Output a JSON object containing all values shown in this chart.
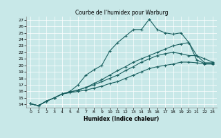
{
  "title": "Courbe de l'humidex pour Warburg",
  "xlabel": "Humidex (Indice chaleur)",
  "bg_color": "#c8e8e8",
  "line_color": "#1a6060",
  "xlim": [
    -0.5,
    23.5
  ],
  "ylim": [
    13.5,
    27.5
  ],
  "xticks": [
    0,
    1,
    2,
    3,
    4,
    5,
    6,
    7,
    8,
    9,
    10,
    11,
    12,
    13,
    14,
    15,
    16,
    17,
    18,
    19,
    20,
    21,
    22,
    23
  ],
  "yticks": [
    14,
    15,
    16,
    17,
    18,
    19,
    20,
    21,
    22,
    23,
    24,
    25,
    26,
    27
  ],
  "lines": [
    {
      "x": [
        0,
        1,
        2,
        3,
        4,
        5,
        6,
        7,
        8,
        9,
        10,
        11,
        12,
        13,
        14,
        15,
        16,
        17,
        18,
        19,
        20,
        21,
        22,
        23
      ],
      "y": [
        14.1,
        13.8,
        14.5,
        15.0,
        15.6,
        16.0,
        17.0,
        18.5,
        19.3,
        20.0,
        22.2,
        23.5,
        24.5,
        25.5,
        25.5,
        27.1,
        25.5,
        25.0,
        24.8,
        25.0,
        23.5,
        20.8,
        20.3,
        20.3
      ]
    },
    {
      "x": [
        0,
        1,
        2,
        3,
        4,
        5,
        6,
        7,
        8,
        9,
        10,
        11,
        12,
        13,
        14,
        15,
        16,
        17,
        18,
        19,
        20,
        21,
        22,
        23
      ],
      "y": [
        14.1,
        13.8,
        14.5,
        15.0,
        15.6,
        15.8,
        16.0,
        16.2,
        16.5,
        16.8,
        17.2,
        17.5,
        18.0,
        18.5,
        19.0,
        19.5,
        19.8,
        20.0,
        20.2,
        20.5,
        20.5,
        20.4,
        20.2,
        20.2
      ]
    },
    {
      "x": [
        0,
        1,
        2,
        3,
        4,
        5,
        6,
        7,
        8,
        9,
        10,
        11,
        12,
        13,
        14,
        15,
        16,
        17,
        18,
        19,
        20,
        21,
        22,
        23
      ],
      "y": [
        14.1,
        13.8,
        14.5,
        15.0,
        15.6,
        15.9,
        16.2,
        16.6,
        17.0,
        17.5,
        18.0,
        18.5,
        19.2,
        19.8,
        20.5,
        21.0,
        21.5,
        21.8,
        22.0,
        21.8,
        21.5,
        21.5,
        20.4,
        20.4
      ]
    },
    {
      "x": [
        0,
        1,
        2,
        3,
        4,
        5,
        6,
        7,
        8,
        9,
        10,
        11,
        12,
        13,
        14,
        15,
        16,
        17,
        18,
        19,
        20,
        21,
        22,
        23
      ],
      "y": [
        14.1,
        13.8,
        14.5,
        15.0,
        15.6,
        15.9,
        16.2,
        16.6,
        17.2,
        17.8,
        18.5,
        19.2,
        19.8,
        20.5,
        21.0,
        21.5,
        22.0,
        22.5,
        23.0,
        23.3,
        23.5,
        21.5,
        21.0,
        20.5
      ]
    }
  ]
}
